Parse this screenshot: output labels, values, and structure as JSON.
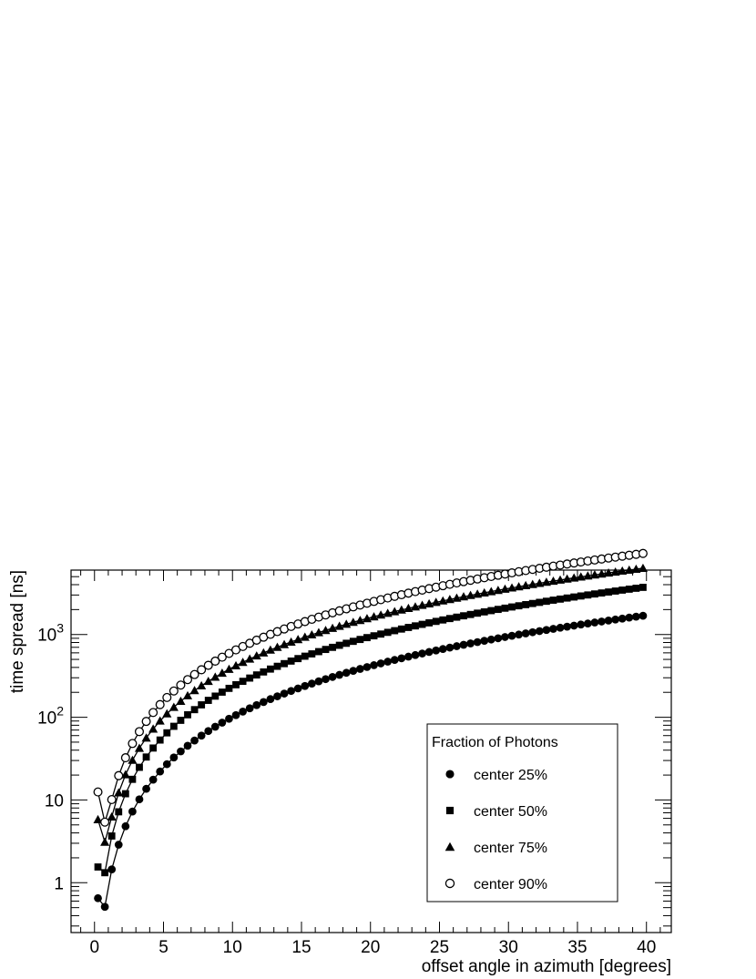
{
  "chart_data": {
    "type": "scatter",
    "xlabel": "offset angle in azimuth [degrees]",
    "ylabel": "time spread [ns]",
    "xlim": [
      -1.7,
      41.8
    ],
    "ylim": [
      0.25,
      6000
    ],
    "y_scale": "log",
    "x_ticks": [
      "0",
      "5",
      "10",
      "15",
      "20",
      "25",
      "30",
      "35",
      "40"
    ],
    "y_ticks": [
      {
        "base": "1",
        "exp": ""
      },
      {
        "base": "10",
        "exp": ""
      },
      {
        "base": "10",
        "exp": "2"
      },
      {
        "base": "10",
        "exp": "3"
      }
    ],
    "grid": false,
    "legend": {
      "title": "Fraction of Photons",
      "placement": "lower-right"
    },
    "x_start": 0.25,
    "x_step": 0.5,
    "x_count": 80,
    "series": [
      {
        "name": "center 25%",
        "marker": "filled-circle",
        "k": 0.92,
        "p": 2.04,
        "y_first": 0.65
      },
      {
        "name": "center 50%",
        "marker": "filled-square",
        "k": 2.35,
        "p": 2.0,
        "y_first": 1.55
      },
      {
        "name": "center 75%",
        "marker": "filled-triangle",
        "k": 4.0,
        "p": 2.0,
        "y_first": 5.8,
        "y_second": 3.1
      },
      {
        "name": "center 90%",
        "marker": "open-circle",
        "k": 6.5,
        "p": 1.98,
        "y_first": 12.5,
        "y_second": 5.4
      }
    ]
  }
}
